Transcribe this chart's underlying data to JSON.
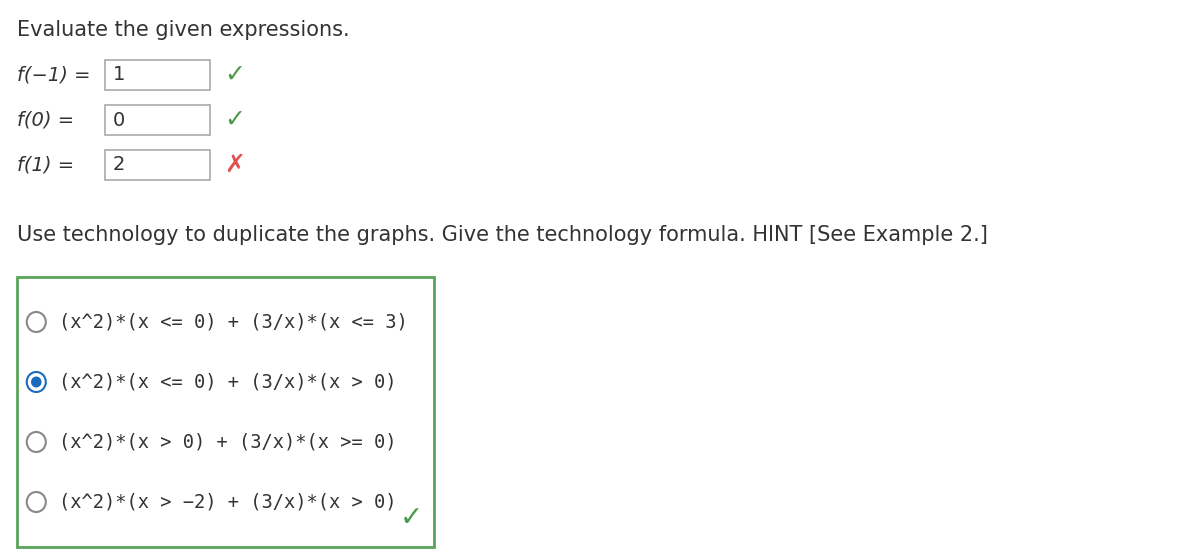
{
  "title": "Evaluate the given expressions.",
  "question2_text": "Use technology to duplicate the graphs. Give the technology formula. HINT [See Example 2.]",
  "expressions": [
    {
      "label": "f(−1) =",
      "value": "1",
      "correct": true
    },
    {
      "label": "f(0) =",
      "value": "0",
      "correct": true
    },
    {
      "label": "f(1) =",
      "value": "2",
      "correct": false
    }
  ],
  "options": [
    {
      "text": "(x^2)*(x <= 0) + (3/x)*(x <= 3)",
      "selected": false
    },
    {
      "text": "(x^2)*(x <= 0) + (3/x)*(x > 0)",
      "selected": true
    },
    {
      "text": "(x^2)*(x > 0) + (3/x)*(x >= 0)",
      "selected": false
    },
    {
      "text": "(x^2)*(x > −2) + (3/x)*(x > 0)",
      "selected": false
    }
  ],
  "show_final_check": true,
  "bg_color": "#ffffff",
  "text_color": "#333333",
  "green_color": "#4a9a4a",
  "red_color": "#e05050",
  "blue_color": "#1a6bbf",
  "box_border_color": "#5aa55a",
  "input_border_color": "#aaaaaa",
  "font_size_title": 15,
  "font_size_body": 13,
  "font_size_options": 13
}
